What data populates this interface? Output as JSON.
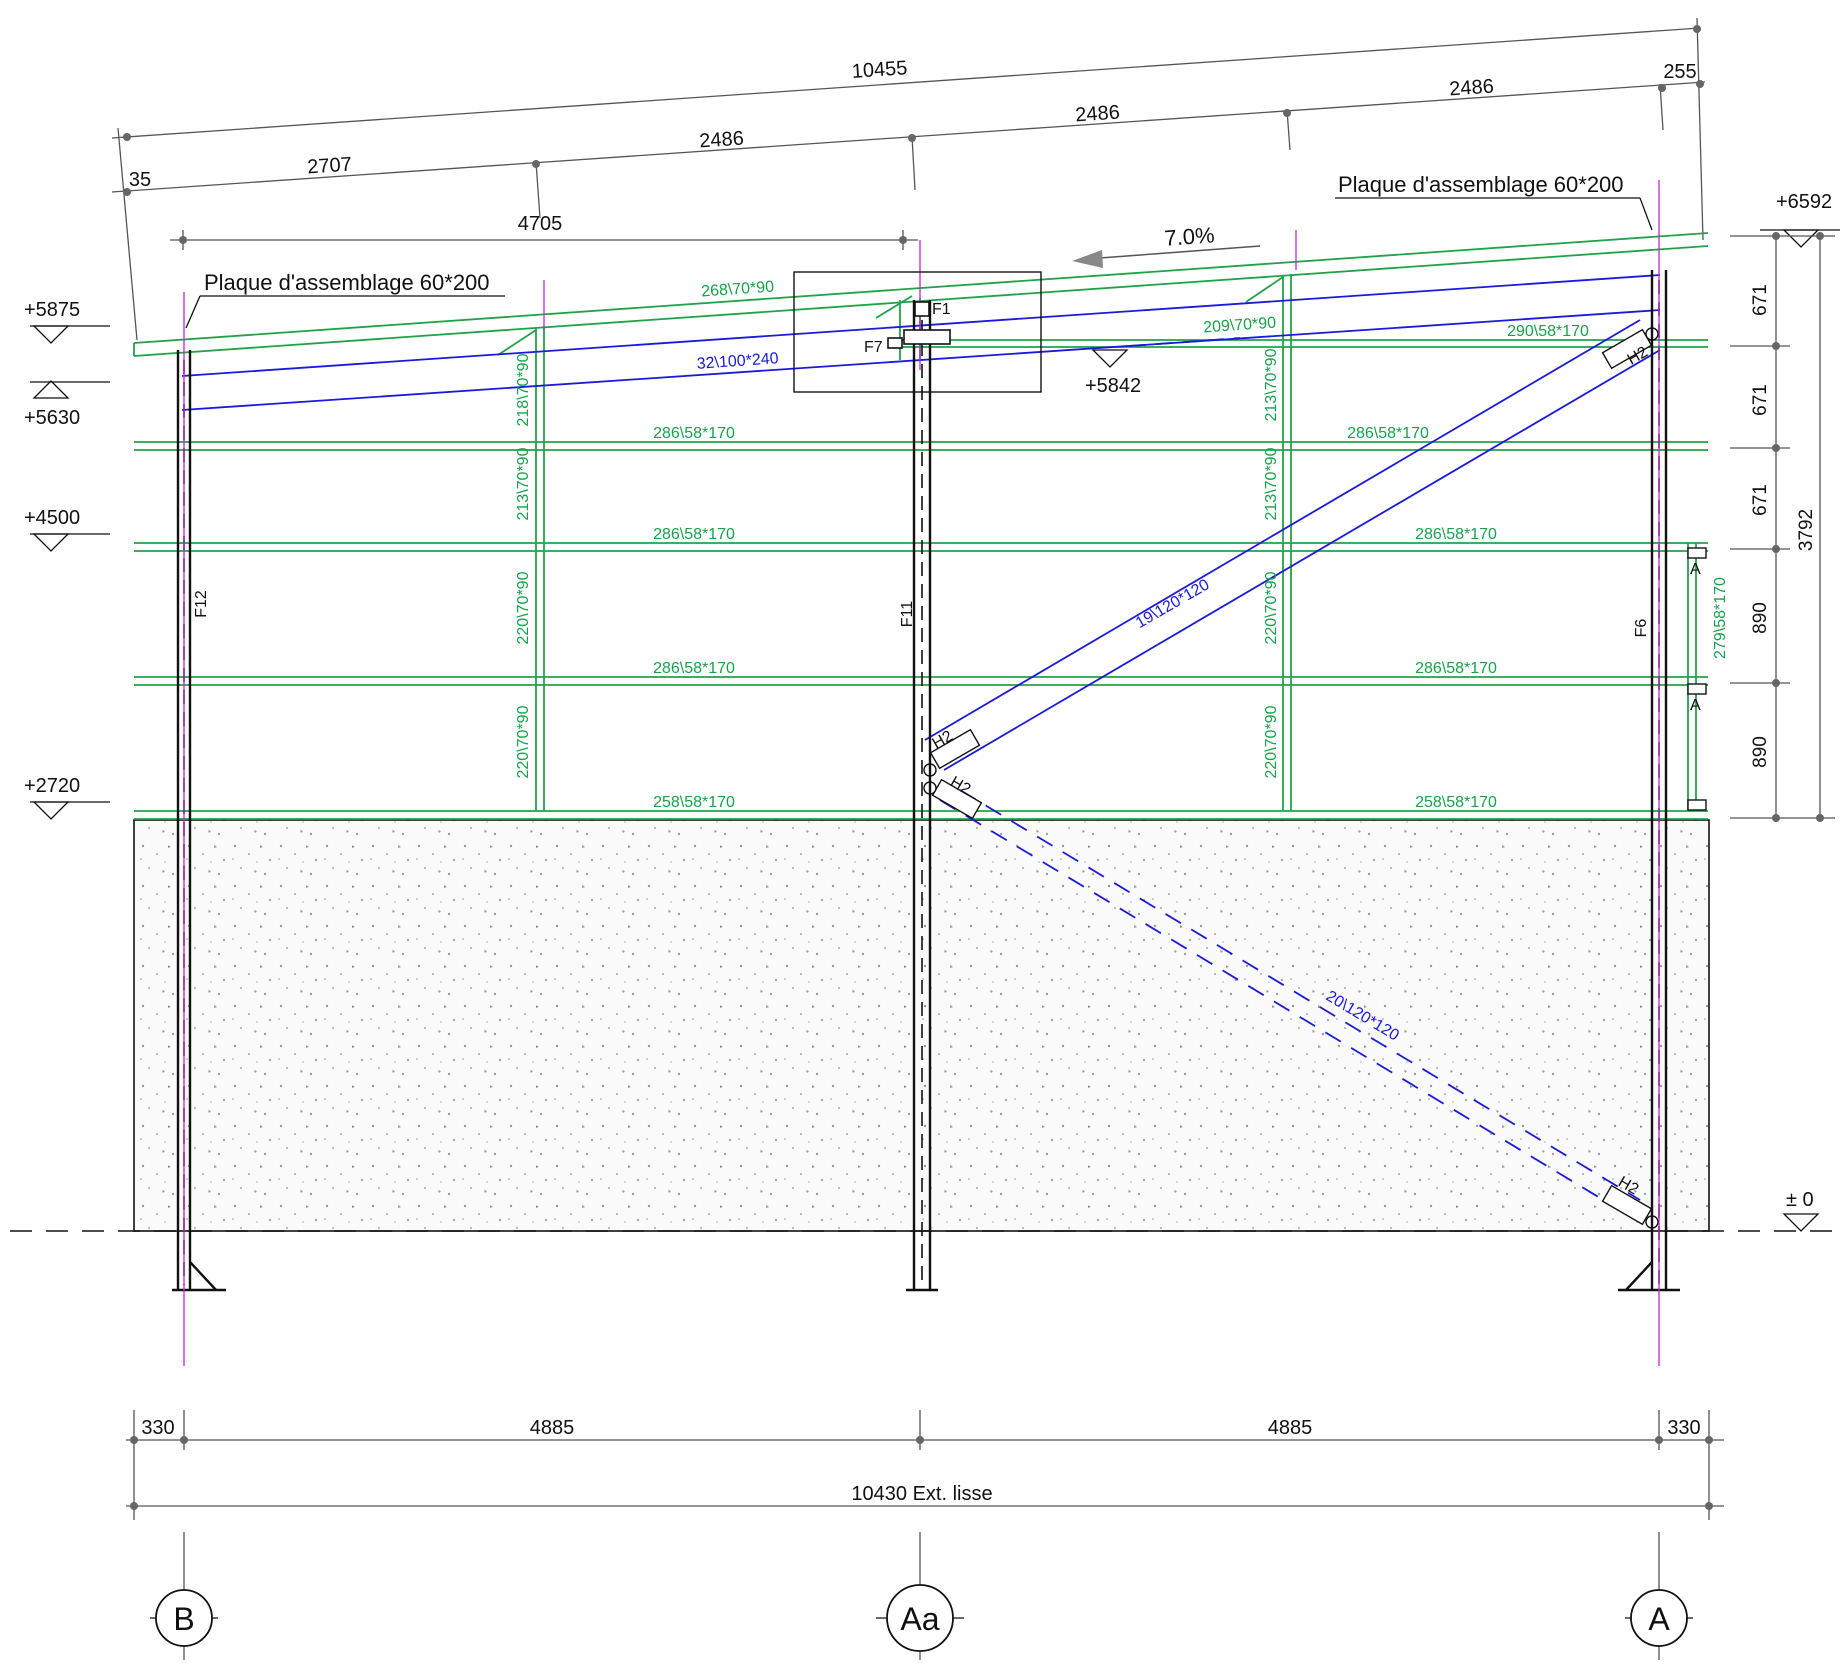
{
  "colors": {
    "timber": "#1fa34a",
    "brace": "#1a1adb",
    "axis_line": "#c026d3",
    "ink": "#111111",
    "concrete": "#f4f4f4"
  },
  "top_dims": {
    "overall": "10455",
    "right_end": "255",
    "left_end": "35",
    "seg1": "2707",
    "seg2": "2486",
    "seg3": "2486",
    "seg4": "2486",
    "left_span": "4705"
  },
  "notes": {
    "plate_left": "Plaque d'assemblage 60*200",
    "plate_right": "Plaque d'assemblage 60*200",
    "slope": "7.0%"
  },
  "levels": {
    "l6592": "+6592",
    "l5875": "+5875",
    "l5842": "+5842",
    "l5630": "+5630",
    "l4500": "+4500",
    "l2720": "+2720",
    "l0": "± 0"
  },
  "right_dims": {
    "d1": "671",
    "d2": "671",
    "d3": "671",
    "d4": "890",
    "d5": "890",
    "total": "3792"
  },
  "members": {
    "rafter_top": "268\\70*90",
    "purlin_32": "32\\100*240",
    "purlin_209": "209\\70*90",
    "rail_290": "290\\58*170",
    "rail_286": "286\\58*170",
    "rail_258": "258\\58*170",
    "post_218": "218\\70*90",
    "post_213": "213\\70*90",
    "post_220": "220\\70*90",
    "post_279": "279\\58*170",
    "brace_19": "19\\120*120",
    "brace_20": "20\\120*120"
  },
  "tags": {
    "f1": "F1",
    "f7": "F7",
    "f12": "F12",
    "f11": "F11",
    "f6": "F6",
    "h2": "H2",
    "a": "A"
  },
  "bottom_dims": {
    "left": "330",
    "mid_left": "4885",
    "mid_right": "4885",
    "right": "330",
    "overall": "10430 Ext. lisse"
  },
  "axes": {
    "left": "B",
    "middle": "Aa",
    "right": "A"
  }
}
